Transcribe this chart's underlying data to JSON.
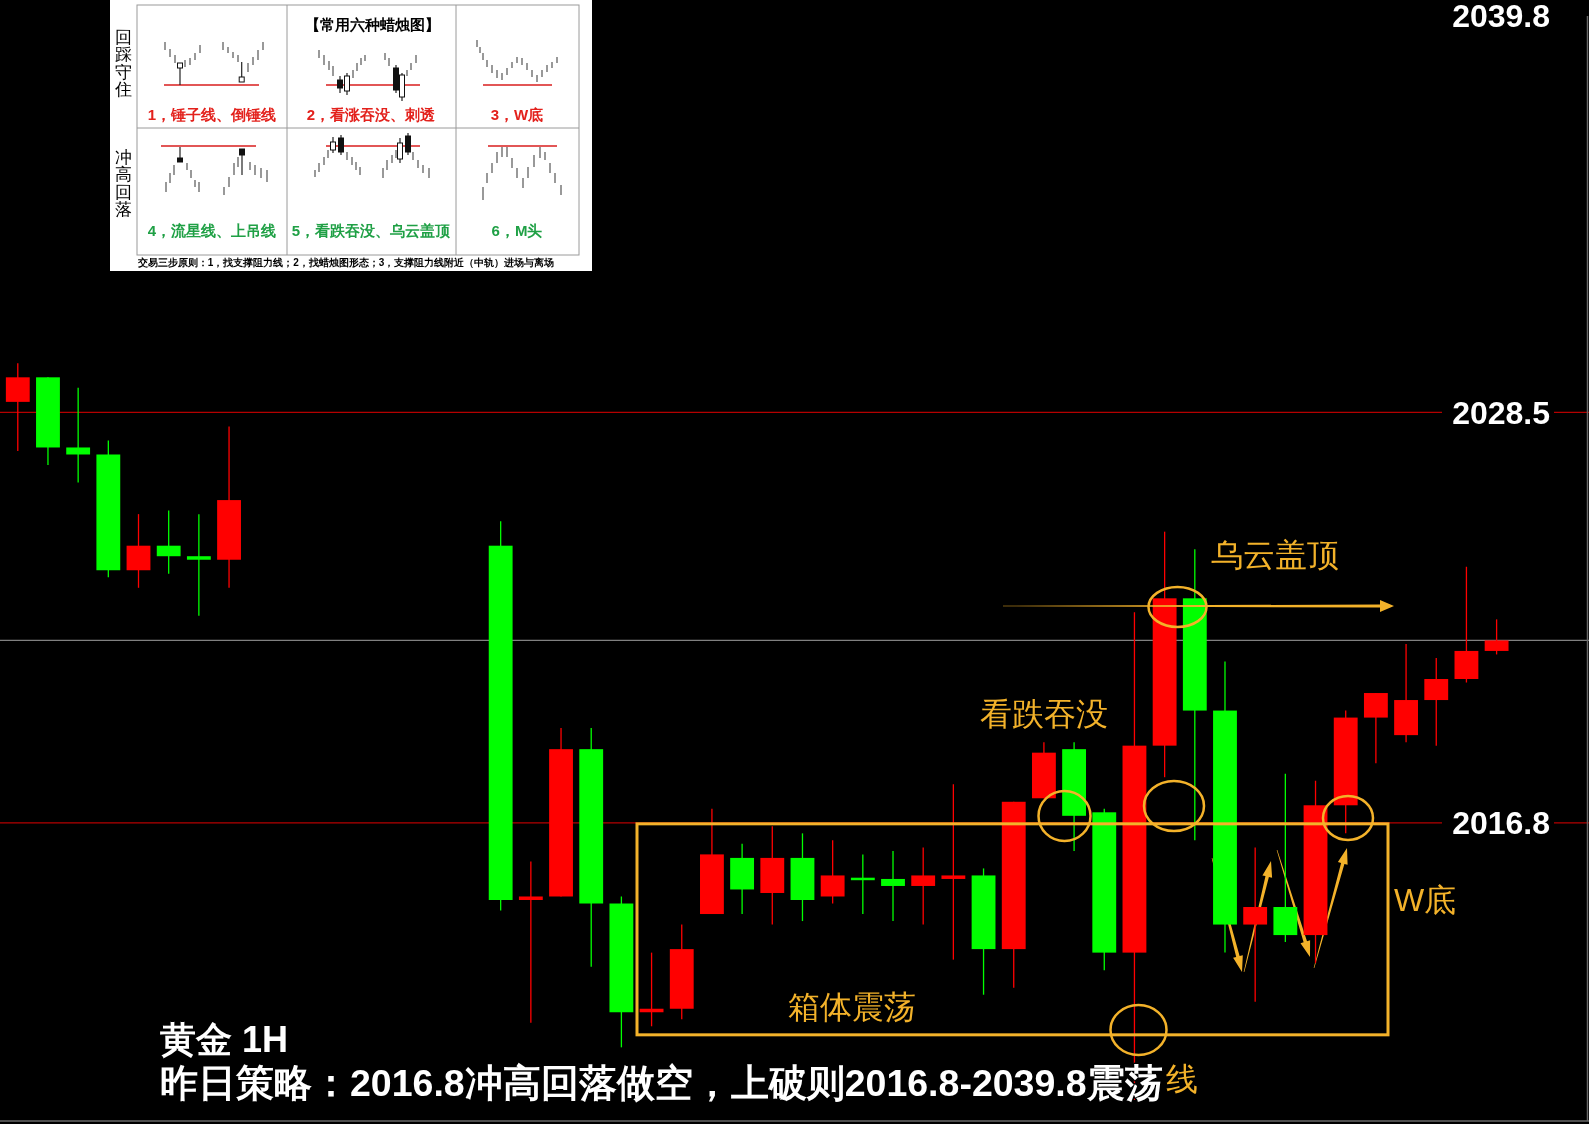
{
  "chart_data": {
    "type": "candlestick",
    "title": "黄金 1H",
    "subtitle": "昨日策略：2016.8冲高回落做空，上破则2016.8-2039.8震荡",
    "categories": [
      null,
      null,
      null,
      null,
      null,
      null,
      null,
      null,
      null,
      null,
      null,
      null,
      null,
      null,
      null,
      null,
      null,
      null,
      null,
      null,
      null,
      null,
      null,
      null,
      null,
      null,
      null,
      null,
      null,
      null,
      null,
      null,
      null,
      null,
      null,
      null,
      null,
      null,
      null,
      null,
      null,
      null,
      null,
      null,
      null,
      null,
      null,
      null,
      null,
      null
    ],
    "ohlc": [
      [
        2028.8,
        2029.9,
        2027.4,
        2029.5
      ],
      [
        2029.5,
        2029.5,
        2027.0,
        2027.5
      ],
      [
        2027.5,
        2029.2,
        2026.5,
        2027.3
      ],
      [
        2027.3,
        2027.7,
        2023.8,
        2024.0
      ],
      [
        2024.0,
        2025.6,
        2023.5,
        2024.7
      ],
      [
        2024.7,
        2025.7,
        2023.9,
        2024.4
      ],
      [
        2024.4,
        2025.6,
        2022.7,
        2024.3
      ],
      [
        2024.3,
        2028.1,
        2023.5,
        2026.0
      ],
      null,
      null,
      null,
      null,
      null,
      null,
      null,
      null,
      [
        2024.7,
        2025.4,
        2014.3,
        2014.6
      ],
      [
        2014.6,
        2015.7,
        2011.1,
        2014.7
      ],
      [
        2014.7,
        2019.5,
        2014.7,
        2018.9
      ],
      [
        2018.9,
        2019.5,
        2012.7,
        2014.5
      ],
      [
        2014.5,
        2014.7,
        2010.4,
        2011.4
      ],
      [
        2011.4,
        2013.1,
        2011.0,
        2011.5
      ],
      [
        2011.5,
        2013.9,
        2011.2,
        2013.2
      ],
      [
        2014.2,
        2017.2,
        2014.2,
        2015.9
      ],
      [
        2015.8,
        2016.2,
        2014.2,
        2014.9
      ],
      [
        2014.8,
        2016.7,
        2013.9,
        2015.8
      ],
      [
        2015.8,
        2016.5,
        2014.0,
        2014.6
      ],
      [
        2014.7,
        2016.3,
        2014.5,
        2015.3
      ],
      [
        2015.2,
        2015.9,
        2014.2,
        2015.2
      ],
      [
        2015.2,
        2016.0,
        2014.0,
        2015.0
      ],
      [
        2015.0,
        2016.1,
        2013.9,
        2015.3
      ],
      [
        2015.2,
        2017.9,
        2012.9,
        2015.3
      ],
      [
        2015.3,
        2015.5,
        2011.9,
        2013.2
      ],
      [
        2013.2,
        2017.4,
        2012.1,
        2017.4
      ],
      [
        2017.5,
        2019.1,
        2017.5,
        2018.8
      ],
      [
        2018.9,
        2019.1,
        2016.0,
        2017.0
      ],
      [
        2017.1,
        2017.2,
        2012.6,
        2013.1
      ],
      [
        2013.1,
        2022.8,
        2008.9,
        2019.0
      ],
      [
        2019.0,
        2025.1,
        2018.1,
        2023.2
      ],
      [
        2023.2,
        2024.6,
        2016.3,
        2020.0
      ],
      [
        2020.0,
        2021.4,
        2013.1,
        2013.9
      ],
      [
        2013.9,
        2016.1,
        2011.7,
        2014.4
      ],
      [
        2014.4,
        2018.2,
        2013.4,
        2013.6
      ],
      [
        2013.6,
        2018.0,
        2012.8,
        2017.3
      ],
      [
        2017.3,
        2020.0,
        2016.5,
        2019.8
      ],
      [
        2019.8,
        2020.5,
        2018.5,
        2020.5
      ],
      [
        2019.3,
        2021.9,
        2019.1,
        2020.3
      ],
      [
        2020.3,
        2021.5,
        2019.0,
        2020.9
      ],
      [
        2020.9,
        2024.1,
        2020.8,
        2021.7
      ],
      [
        2021.7,
        2022.6,
        2021.6,
        2022.0
      ]
    ],
    "colors": [
      "#ff0000",
      "#00ff00",
      "#00ff00",
      "#00ff00",
      "#ff0000",
      "#00ff00",
      "#00ff00",
      "#ff0000",
      null,
      null,
      null,
      null,
      null,
      null,
      null,
      null,
      "#00ff00",
      "#ff0000",
      "#ff0000",
      "#00ff00",
      "#00ff00",
      "#ff0000",
      "#ff0000",
      "#ff0000",
      "#00ff00",
      "#ff0000",
      "#00ff00",
      "#ff0000",
      "#00ff00",
      "#00ff00",
      "#ff0000",
      "#ff0000",
      "#00ff00",
      "#ff0000",
      "#ff0000",
      "#00ff00",
      "#00ff00",
      "#ff0000",
      "#ff0000",
      "#00ff00",
      "#00ff00",
      "#ff0000",
      "#00ff00",
      "#ff0000",
      "#ff0000",
      "#ff0000",
      "#ff0000",
      "#ff0000",
      "#ff0000",
      "#ff0000"
    ],
    "ylim": [
      2008.3,
      2039.8
    ],
    "yticks": [
      2039.8,
      2028.5,
      2016.8
    ],
    "tick_labels": "y",
    "ref_lines": [
      {
        "axis": "y",
        "value": 2028.5,
        "color": "#b40000"
      },
      {
        "axis": "y",
        "value": 2022.0,
        "color": "#808080"
      },
      {
        "axis": "y",
        "value": 2016.8,
        "color": "#b40000"
      }
    ],
    "annotations": [
      "乌云盖顶",
      "看跌吞没",
      "W底",
      "箱体震荡",
      "线",
      "【常用六种蜡烛图】",
      "回踩守住",
      "冲高回落",
      "1，锤子线、倒锤线",
      "2，看涨吞没、刺透",
      "3，W底",
      "4，流星线、上吊线",
      "5，看跌吞没、乌云盖顶",
      "6，M头",
      "交易三步原则：1，找支撑阻力线；2，找蜡烛图形态；3，支撑阻力线附近（中轨）进场与离场"
    ]
  }
}
